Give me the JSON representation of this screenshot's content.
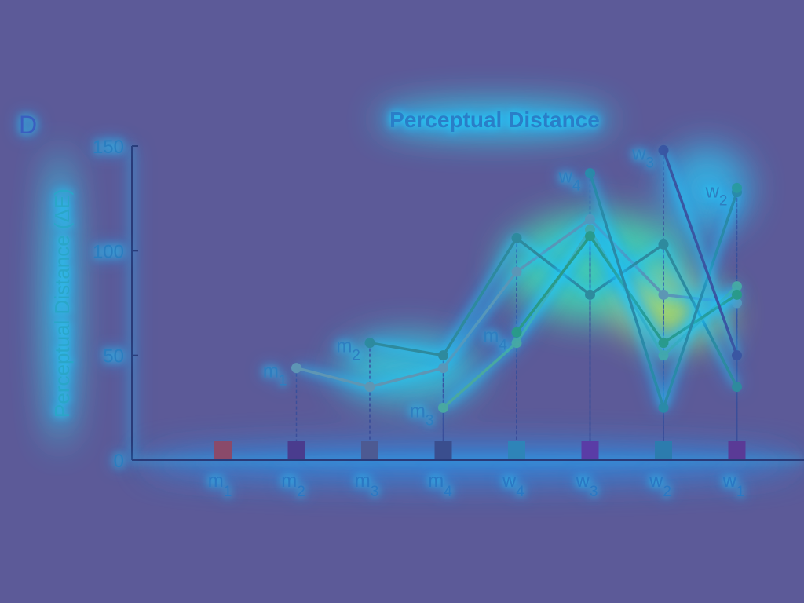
{
  "panel_letter": "D",
  "chart_data": {
    "type": "line",
    "title": "Perceptual Distance",
    "xlabel": "",
    "ylabel": "Perceptual Distance (ΔE)",
    "ylim": [
      0,
      150
    ],
    "y_ticks": [
      0,
      50,
      100,
      150
    ],
    "categories": [
      {
        "base": "m",
        "sub": "1"
      },
      {
        "base": "m",
        "sub": "2"
      },
      {
        "base": "m",
        "sub": "3"
      },
      {
        "base": "m",
        "sub": "4"
      },
      {
        "base": "w",
        "sub": "4"
      },
      {
        "base": "w",
        "sub": "3"
      },
      {
        "base": "w",
        "sub": "2"
      },
      {
        "base": "w",
        "sub": "1"
      }
    ],
    "marker_colors": [
      "#8a4a6a",
      "#4a3c8e",
      "#4d5a92",
      "#3a4e8e",
      "#2e84b8",
      "#5a3ca6",
      "#2c7cae",
      "#5a3a96"
    ],
    "series": [
      {
        "label": {
          "base": "m",
          "sub": "1"
        },
        "color": "#5f96b4",
        "points": [
          [
            1,
            44
          ],
          [
            2,
            35
          ],
          [
            3,
            44
          ],
          [
            4,
            90
          ],
          [
            5,
            115
          ],
          [
            6,
            79
          ],
          [
            7,
            75
          ]
        ]
      },
      {
        "label": {
          "base": "m",
          "sub": "2"
        },
        "color": "#2e8a9e",
        "points": [
          [
            2,
            56
          ],
          [
            3,
            50
          ],
          [
            4,
            106
          ],
          [
            5,
            79
          ],
          [
            6,
            103
          ],
          [
            7,
            35
          ]
        ]
      },
      {
        "label": {
          "base": "m",
          "sub": "3"
        },
        "color": "#4aa8a0",
        "points": [
          [
            3,
            25
          ],
          [
            4,
            56
          ],
          [
            5,
            110
          ],
          [
            6,
            50
          ],
          [
            7,
            83
          ]
        ]
      },
      {
        "label": {
          "base": "m",
          "sub": "4"
        },
        "color": "#2a9a88",
        "points": [
          [
            4,
            61
          ],
          [
            5,
            107
          ],
          [
            6,
            56
          ],
          [
            7,
            79
          ]
        ]
      },
      {
        "label": {
          "base": "w",
          "sub": "4"
        },
        "color": "#2a8aa8",
        "points": [
          [
            5,
            137
          ],
          [
            6,
            25
          ],
          [
            7,
            128
          ]
        ]
      },
      {
        "label": {
          "base": "w",
          "sub": "3"
        },
        "color": "#3a56a2",
        "points": [
          [
            6,
            148
          ],
          [
            7,
            50
          ]
        ]
      },
      {
        "label": {
          "base": "w",
          "sub": "2"
        },
        "color": "#2a9aa0",
        "points": [
          [
            7,
            130
          ]
        ]
      }
    ]
  }
}
